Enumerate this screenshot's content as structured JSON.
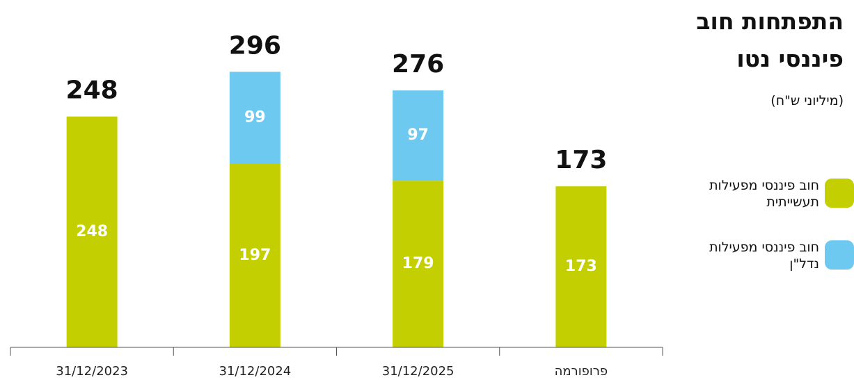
{
  "chart_data": {
    "type": "stacked_bar",
    "title": "התפתחות חוב פיננסי נטו",
    "subtitle": "(מיליוני ש\"ח)",
    "categories": [
      "31/12/2023",
      "31/12/2024",
      "31/12/2025",
      "פרופורמה"
    ],
    "series": [
      {
        "name": "חוב פיננסי מפעילות תעשייתית",
        "color": "#c3cf00",
        "values": [
          248,
          197,
          179,
          173
        ]
      },
      {
        "name": "חוב פיננסי מפעילות נדל\"ן",
        "color": "#6ec9f0",
        "values": [
          null,
          99,
          97,
          null
        ]
      }
    ],
    "totals": [
      248,
      296,
      276,
      173
    ],
    "ylim": [
      0,
      300
    ]
  }
}
